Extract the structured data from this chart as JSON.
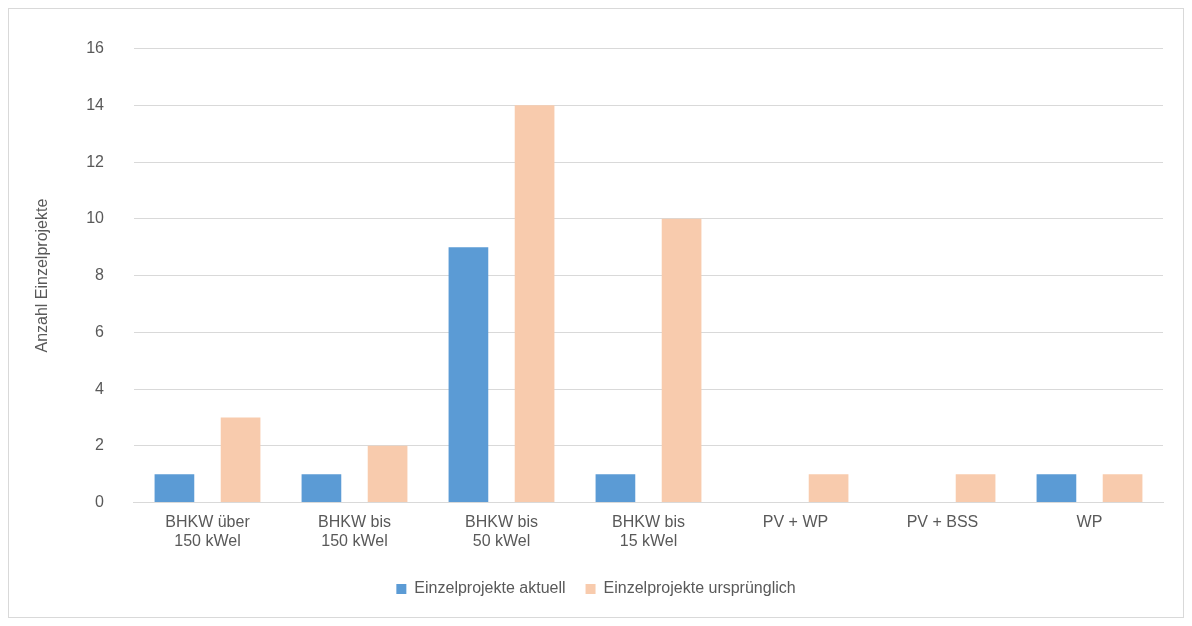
{
  "chart_data": {
    "type": "bar",
    "ylabel": "Anzahl Einzelprojekte",
    "categories": [
      "BHKW über 150 kWel",
      "BHKW bis 150 kWel",
      "BHKW bis 50 kWel",
      "BHKW bis 15 kWel",
      "PV + WP",
      "PV + BSS",
      "WP"
    ],
    "series": [
      {
        "name": "Einzelprojekte aktuell",
        "color": "#5b9bd5",
        "values": [
          1,
          1,
          9,
          1,
          0,
          0,
          1
        ]
      },
      {
        "name": "Einzelprojekte ursprünglich",
        "color": "#f8cbad",
        "values": [
          3,
          2,
          14,
          10,
          1,
          1,
          1
        ]
      }
    ],
    "ylim": [
      0,
      16
    ],
    "yticks": [
      0,
      2,
      4,
      6,
      8,
      10,
      12,
      14,
      16
    ],
    "grid": "y",
    "legend": "bottom"
  }
}
